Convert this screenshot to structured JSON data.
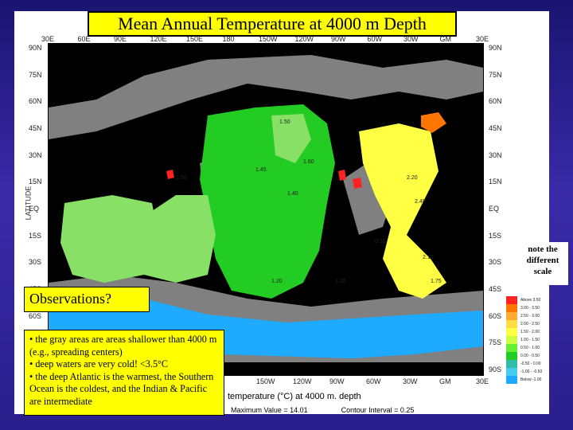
{
  "title": "Mean Annual Temperature at 4000 m Depth",
  "map": {
    "lon_ticks_top": [
      "30E",
      "60E",
      "90E",
      "120E",
      "150E",
      "180",
      "150W",
      "120W",
      "90W",
      "60W",
      "30W",
      "GM",
      "30E"
    ],
    "lon_ticks_bottom": [
      "150W",
      "120W",
      "90W",
      "60W",
      "30W",
      "GM",
      "30E"
    ],
    "lat_ticks_left": [
      "90N",
      "75N",
      "60N",
      "45N",
      "30N",
      "15N",
      "EQ",
      "15S",
      "30S",
      "45S",
      "60S",
      "75S",
      "90S"
    ],
    "lat_ticks_right": [
      "90N",
      "75N",
      "60N",
      "45N",
      "30N",
      "15N",
      "EQ",
      "15S",
      "30S",
      "45S",
      "60S",
      "75S",
      "90S"
    ],
    "left_axis_label": "LATITUDE",
    "x_label": "temperature (°C) at 4000 m. depth",
    "max_value": "Maximum Value = 14.01",
    "contour_interval": "Contour Interval = 0.25",
    "contour_labels": [
      "1.50",
      "1.55",
      "1.45",
      "1.40",
      "1.60",
      "2.20",
      "2.40",
      "2.10",
      "1.75",
      "0.35",
      "1.25",
      "1.20"
    ],
    "colors": {
      "land": "#000000",
      "shallow": "#808080",
      "pacific": "#22cc22",
      "pacific_light": "#88e066",
      "atlantic": "#ffff44",
      "southern": "#1eaaff",
      "warm": "#ff7700",
      "hot": "#ff2222"
    }
  },
  "note": "note the different scale",
  "legend": [
    {
      "label": "Above 3.50",
      "color": "#ff2222"
    },
    {
      "label": "3.00 - 3.50",
      "color": "#ff7700"
    },
    {
      "label": "2.50 - 3.00",
      "color": "#ffaa33"
    },
    {
      "label": "2.00 - 2.50",
      "color": "#ffdd44"
    },
    {
      "label": "1.50 - 2.00",
      "color": "#ffff44"
    },
    {
      "label": "1.00 - 1.50",
      "color": "#ccff44"
    },
    {
      "label": "0.50 - 1.00",
      "color": "#66ee33"
    },
    {
      "label": "0.00 - 0.50",
      "color": "#22cc22"
    },
    {
      "label": "-0.50 - 0.00",
      "color": "#33bbaa"
    },
    {
      "label": "-1.00 - -0.50",
      "color": "#44ccee"
    },
    {
      "label": "Below -1.00",
      "color": "#1eaaff"
    }
  ],
  "observations": {
    "heading": "Observations?",
    "bullets": [
      "• the gray areas are areas shallower than 4000 m (e.g., spreading centers)",
      "• deep waters are very cold! <3.5°C",
      "• the deep Atlantic is the warmest, the Southern Ocean is the coldest, and the Indian & Pacific are intermediate"
    ]
  }
}
